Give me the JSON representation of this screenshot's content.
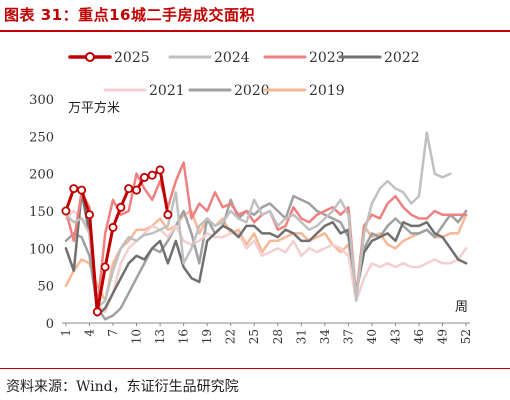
{
  "title": "图表 31：重点16城二手房成交面积",
  "source": "资料来源：Wind，东证衍生品研究院",
  "chart_data": {
    "type": "line",
    "ylabel": "万平方米",
    "xlabel": "周",
    "ylim": [
      0,
      300
    ],
    "yticks": [
      0,
      50,
      100,
      150,
      200,
      250,
      300
    ],
    "xticks": [
      1,
      4,
      7,
      10,
      13,
      16,
      19,
      22,
      25,
      28,
      31,
      34,
      37,
      40,
      43,
      46,
      49,
      52
    ],
    "legend_position": "top",
    "series": [
      {
        "name": "2025",
        "color": "#c00000",
        "width": 3,
        "markers": true,
        "values": [
          150,
          180,
          178,
          145,
          15,
          75,
          128,
          155,
          180,
          178,
          195,
          198,
          205,
          145
        ]
      },
      {
        "name": "2024",
        "color": "#c0c0c0",
        "width": 2.5,
        "values": [
          145,
          135,
          140,
          120,
          20,
          30,
          70,
          100,
          115,
          110,
          118,
          120,
          125,
          130,
          175,
          80,
          100,
          130,
          140,
          130,
          135,
          150,
          140,
          135,
          165,
          145,
          150,
          130,
          140,
          145,
          135,
          125,
          130,
          140,
          150,
          165,
          145,
          30,
          120,
          160,
          180,
          190,
          180,
          175,
          160,
          170,
          255,
          200,
          195,
          200
        ]
      },
      {
        "name": "2023",
        "color": "#f08080",
        "width": 2.5,
        "values": [
          150,
          110,
          175,
          155,
          20,
          120,
          165,
          145,
          150,
          200,
          180,
          165,
          190,
          155,
          190,
          215,
          140,
          160,
          150,
          175,
          155,
          160,
          145,
          150,
          135,
          145,
          150,
          125,
          130,
          155,
          140,
          135,
          145,
          150,
          155,
          145,
          155,
          35,
          130,
          145,
          140,
          160,
          170,
          155,
          145,
          140,
          140,
          150,
          145,
          145,
          145,
          145
        ]
      },
      {
        "name": "2022",
        "color": "#707070",
        "width": 2.5,
        "values": [
          100,
          70,
          175,
          120,
          10,
          20,
          40,
          60,
          80,
          90,
          85,
          100,
          110,
          80,
          110,
          75,
          60,
          55,
          110,
          120,
          130,
          125,
          115,
          130,
          130,
          120,
          120,
          115,
          125,
          120,
          110,
          110,
          120,
          130,
          135,
          120,
          125,
          40,
          95,
          110,
          115,
          120,
          110,
          135,
          130,
          130,
          135,
          120,
          115,
          100,
          85,
          80
        ]
      },
      {
        "name": "2021",
        "color": "#f4cfd0",
        "width": 2.5,
        "values": [
          140,
          150,
          140,
          130,
          25,
          15,
          40,
          80,
          100,
          110,
          120,
          130,
          125,
          115,
          130,
          110,
          105,
          110,
          120,
          115,
          115,
          120,
          120,
          100,
          110,
          90,
          95,
          100,
          95,
          110,
          90,
          100,
          95,
          100,
          105,
          100,
          90,
          30,
          60,
          80,
          75,
          80,
          75,
          80,
          75,
          75,
          80,
          85,
          80,
          80,
          85,
          100
        ]
      },
      {
        "name": "2020",
        "color": "#a0a0a0",
        "width": 2.5,
        "values": [
          110,
          120,
          115,
          90,
          20,
          5,
          10,
          20,
          40,
          60,
          80,
          100,
          95,
          110,
          130,
          150,
          120,
          80,
          140,
          120,
          130,
          165,
          140,
          150,
          145,
          155,
          160,
          150,
          140,
          170,
          165,
          160,
          150,
          145,
          140,
          135,
          115,
          40,
          100,
          120,
          115,
          130,
          140,
          130,
          120,
          120,
          125,
          115,
          130,
          145,
          135,
          150
        ]
      },
      {
        "name": "2019",
        "color": "#f7b896",
        "width": 2.5,
        "values": [
          50,
          70,
          85,
          80,
          50,
          30,
          80,
          100,
          110,
          125,
          125,
          130,
          140,
          125,
          130,
          145,
          150,
          120,
          140,
          130,
          140,
          120,
          125,
          105,
          120,
          95,
          110,
          110,
          115,
          120,
          120,
          110,
          115,
          120,
          105,
          95,
          105,
          35,
          130,
          115,
          120,
          105,
          100,
          110,
          115,
          120,
          125,
          115,
          115,
          120,
          120,
          145
        ]
      }
    ]
  }
}
